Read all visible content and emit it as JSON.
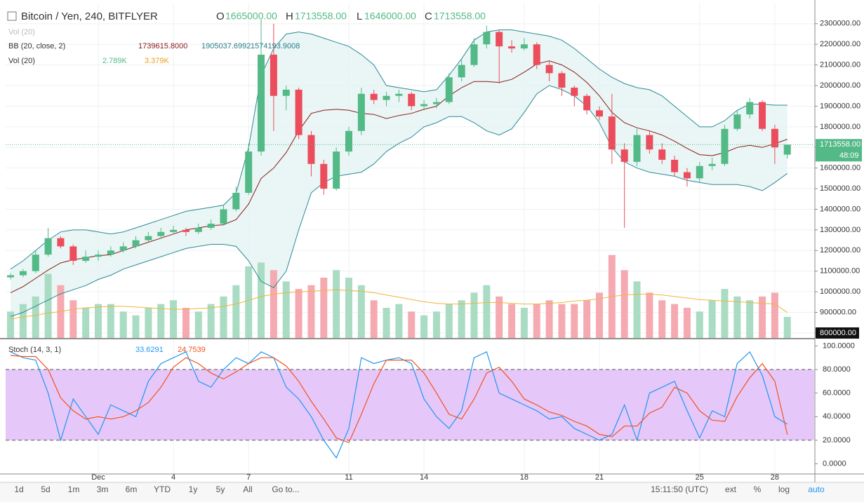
{
  "chart_data": [
    {
      "type": "candlestick",
      "title": "Bitcoin / Yen, 240, BITFLYER",
      "ohlc_legend": [
        {
          "label": "O",
          "value": "1665000.00"
        },
        {
          "label": "H",
          "value": "1713558.00"
        },
        {
          "label": "L",
          "value": "1646000.00"
        },
        {
          "label": "C",
          "value": "1713558.00"
        }
      ],
      "indicators": [
        {
          "name": "Vol (20)"
        },
        {
          "name": "BB (20, close, 2)",
          "readouts": [
            "1739615.8000",
            "1905037.6992",
            "1574193.9008"
          ]
        },
        {
          "name": "Vol (20)",
          "readouts": [
            "2.789K",
            "3.379K"
          ]
        }
      ],
      "categories": [
        null,
        null,
        null,
        null,
        null,
        null,
        null,
        "Dec",
        null,
        null,
        null,
        null,
        null,
        "4",
        null,
        null,
        null,
        null,
        null,
        "7",
        null,
        null,
        null,
        null,
        null,
        null,
        null,
        "11",
        null,
        null,
        null,
        null,
        null,
        "14",
        null,
        null,
        null,
        null,
        null,
        null,
        null,
        "18",
        null,
        null,
        null,
        null,
        null,
        "21",
        null,
        null,
        null,
        null,
        null,
        null,
        null,
        "25",
        null,
        null,
        null,
        null,
        null,
        "28",
        null
      ],
      "open": [
        1070000,
        1080000,
        1100000,
        1180000,
        1260000,
        1220000,
        1150000,
        1170000,
        1180000,
        1200000,
        1220000,
        1250000,
        1270000,
        1290000,
        1300000,
        1290000,
        1310000,
        1330000,
        1400000,
        1480000,
        1680000,
        2150000,
        1950000,
        1980000,
        1760000,
        1620000,
        1500000,
        1680000,
        1780000,
        1960000,
        1930000,
        1950000,
        1960000,
        1900000,
        1910000,
        1920000,
        2040000,
        2100000,
        2200000,
        2260000,
        2190000,
        2180000,
        2200000,
        2100000,
        2060000,
        1990000,
        1950000,
        1880000,
        1850000,
        1690000,
        1630000,
        1760000,
        1690000,
        1640000,
        1580000,
        1550000,
        1610000,
        1620000,
        1790000,
        1860000,
        1920000,
        1790000,
        1665000
      ],
      "high": [
        1090000,
        1110000,
        1200000,
        1310000,
        1270000,
        1230000,
        1200000,
        1200000,
        1220000,
        1240000,
        1270000,
        1290000,
        1310000,
        1320000,
        1310000,
        1330000,
        1350000,
        1420000,
        1510000,
        1720000,
        2320000,
        2300000,
        2000000,
        1990000,
        1780000,
        1640000,
        1700000,
        1800000,
        1990000,
        1980000,
        1970000,
        1980000,
        1970000,
        1930000,
        1940000,
        2060000,
        2130000,
        2230000,
        2290000,
        2270000,
        2220000,
        2230000,
        2210000,
        2120000,
        2070000,
        2000000,
        1960000,
        1900000,
        1960000,
        1720000,
        1790000,
        1780000,
        1720000,
        1660000,
        1600000,
        1630000,
        1650000,
        1810000,
        1880000,
        1940000,
        1930000,
        1810000,
        1713558
      ],
      "low": [
        1060000,
        1070000,
        1090000,
        1170000,
        1210000,
        1130000,
        1140000,
        1150000,
        1170000,
        1190000,
        1210000,
        1240000,
        1260000,
        1280000,
        1270000,
        1280000,
        1300000,
        1320000,
        1390000,
        1470000,
        1660000,
        1780000,
        1880000,
        1740000,
        1560000,
        1470000,
        1490000,
        1660000,
        1760000,
        1910000,
        1900000,
        1920000,
        1880000,
        1880000,
        1890000,
        1910000,
        2020000,
        2090000,
        2180000,
        2010000,
        2160000,
        2170000,
        2080000,
        2020000,
        1950000,
        1900000,
        1860000,
        1830000,
        1620000,
        1310000,
        1610000,
        1670000,
        1620000,
        1560000,
        1510000,
        1530000,
        1590000,
        1610000,
        1780000,
        1840000,
        1780000,
        1620000,
        1646000
      ],
      "close": [
        1080000,
        1100000,
        1180000,
        1260000,
        1220000,
        1150000,
        1170000,
        1180000,
        1200000,
        1220000,
        1250000,
        1270000,
        1290000,
        1300000,
        1290000,
        1310000,
        1330000,
        1400000,
        1480000,
        1680000,
        2150000,
        1950000,
        1980000,
        1760000,
        1620000,
        1500000,
        1680000,
        1780000,
        1960000,
        1930000,
        1950000,
        1960000,
        1900000,
        1910000,
        1920000,
        2040000,
        2100000,
        2200000,
        2260000,
        2190000,
        2180000,
        2200000,
        2100000,
        2060000,
        1990000,
        1950000,
        1880000,
        1850000,
        1690000,
        1630000,
        1760000,
        1690000,
        1640000,
        1580000,
        1550000,
        1610000,
        1620000,
        1790000,
        1860000,
        1920000,
        1790000,
        1700000,
        1713558
      ],
      "up_color": "#53b987",
      "down_color": "#eb4d5c",
      "bb_upper": [
        1110000,
        1150000,
        1200000,
        1250000,
        1290000,
        1300000,
        1300000,
        1290000,
        1280000,
        1290000,
        1310000,
        1330000,
        1350000,
        1370000,
        1390000,
        1400000,
        1410000,
        1420000,
        1480000,
        1700000,
        2050000,
        2180000,
        2250000,
        2260000,
        2250000,
        2230000,
        2210000,
        2190000,
        2150000,
        2100000,
        2000000,
        1990000,
        1980000,
        1970000,
        1980000,
        2050000,
        2130000,
        2220000,
        2260000,
        2270000,
        2270000,
        2260000,
        2250000,
        2240000,
        2220000,
        2180000,
        2130000,
        2080000,
        2040000,
        2010000,
        1990000,
        1980000,
        1950000,
        1900000,
        1850000,
        1800000,
        1800000,
        1830000,
        1880000,
        1910000,
        1910000,
        1905000,
        1905037.6992
      ],
      "bb_middle": [
        995000,
        1025000,
        1065000,
        1105000,
        1140000,
        1155000,
        1165000,
        1175000,
        1180000,
        1200000,
        1220000,
        1240000,
        1260000,
        1280000,
        1300000,
        1310000,
        1320000,
        1325000,
        1350000,
        1425000,
        1550000,
        1600000,
        1675000,
        1780000,
        1865000,
        1880000,
        1885000,
        1880000,
        1865000,
        1860000,
        1840000,
        1855000,
        1865000,
        1885000,
        1900000,
        1950000,
        1990000,
        2020000,
        2020000,
        2015000,
        2030000,
        2065000,
        2105000,
        2120000,
        2100000,
        2065000,
        2015000,
        1950000,
        1870000,
        1820000,
        1795000,
        1780000,
        1760000,
        1730000,
        1695000,
        1665000,
        1660000,
        1675000,
        1700000,
        1710000,
        1700000,
        1718000,
        1739615.8
      ],
      "bb_lower": [
        880000,
        900000,
        930000,
        960000,
        990000,
        1010000,
        1030000,
        1060000,
        1080000,
        1110000,
        1130000,
        1150000,
        1170000,
        1190000,
        1210000,
        1220000,
        1230000,
        1230000,
        1220000,
        1150000,
        1050000,
        1020000,
        1100000,
        1300000,
        1480000,
        1530000,
        1560000,
        1570000,
        1580000,
        1620000,
        1680000,
        1720000,
        1750000,
        1800000,
        1820000,
        1850000,
        1850000,
        1820000,
        1780000,
        1760000,
        1790000,
        1870000,
        1960000,
        2000000,
        1980000,
        1950000,
        1900000,
        1820000,
        1700000,
        1630000,
        1600000,
        1580000,
        1570000,
        1560000,
        1540000,
        1530000,
        1520000,
        1520000,
        1520000,
        1510000,
        1490000,
        1530000,
        1574193.9008
      ],
      "bb_band_color": "#2a8a96",
      "bb_middle_color": "#8b1a1a",
      "bb_fill": "#e3f4f2",
      "volume": [
        3.5,
        4.5,
        5.5,
        8.5,
        7,
        5,
        4,
        4.5,
        4.5,
        3.5,
        3,
        4,
        4.5,
        5,
        4,
        3.5,
        4.5,
        5.5,
        7,
        9.5,
        10,
        9,
        7.5,
        6.5,
        7,
        8,
        9,
        8,
        7,
        5,
        4,
        4.5,
        3.5,
        3,
        3.5,
        4.5,
        5,
        6,
        7,
        5.5,
        4.5,
        4,
        4.5,
        5,
        4.5,
        4.5,
        5,
        6,
        11,
        9,
        7.5,
        6,
        5,
        4.5,
        4,
        3.5,
        5,
        6.5,
        5.5,
        5,
        5.5,
        6,
        2.789
      ],
      "volume_ma": [
        2.5,
        2.8,
        3,
        3.3,
        3.5,
        3.8,
        4,
        4.1,
        4.2,
        4.2,
        4.1,
        4,
        3.9,
        3.8,
        3.8,
        3.9,
        4,
        4.2,
        4.5,
        5,
        5.5,
        5.8,
        6,
        6.1,
        6.2,
        6.3,
        6.4,
        6.3,
        6.2,
        6,
        5.7,
        5.4,
        5.1,
        4.8,
        4.6,
        4.5,
        4.5,
        4.6,
        4.7,
        4.7,
        4.6,
        4.5,
        4.5,
        4.6,
        4.7,
        4.9,
        5,
        5.2,
        5.5,
        5.7,
        5.8,
        5.8,
        5.7,
        5.5,
        5.3,
        5.1,
        5,
        4.9,
        4.8,
        4.7,
        4.6,
        4.5,
        3.379
      ],
      "volume_ylim": [
        0,
        16
      ],
      "volume_up_color": "#a9dcc3",
      "volume_down_color": "#f5aab2",
      "volume_ma_color": "#f0b43c",
      "ylim": [
        776000,
        2398000
      ],
      "yticks": [
        {
          "value": 800000,
          "label": "800000.00"
        },
        {
          "value": 900000,
          "label": "900000.00"
        },
        {
          "value": 1000000,
          "label": "1000000.00"
        },
        {
          "value": 1100000,
          "label": "1100000.00"
        },
        {
          "value": 1200000,
          "label": "1200000.00"
        },
        {
          "value": 1300000,
          "label": "1300000.00"
        },
        {
          "value": 1400000,
          "label": "1400000.00"
        },
        {
          "value": 1500000,
          "label": "1500000.00"
        },
        {
          "value": 1600000,
          "label": "1600000.00"
        },
        {
          "value": 1700000,
          "label": "1700000.00"
        },
        {
          "value": 1800000,
          "label": "1800000.00"
        },
        {
          "value": 1900000,
          "label": "1900000.00"
        },
        {
          "value": 2000000,
          "label": "2000000.00"
        },
        {
          "value": 2100000,
          "label": "2100000.00"
        },
        {
          "value": 2200000,
          "label": "2200000.00"
        },
        {
          "value": 2300000,
          "label": "2300000.00"
        }
      ],
      "last_price_label": "1713558.00",
      "countdown": "48:09",
      "grid": true
    },
    {
      "type": "line",
      "title": "Stoch (14, 3, 1)",
      "series": [
        {
          "name": "33.6291",
          "color": "#2196f3",
          "values": [
            95,
            90,
            88,
            60,
            20,
            55,
            40,
            25,
            50,
            45,
            40,
            70,
            85,
            90,
            95,
            70,
            65,
            80,
            90,
            85,
            95,
            90,
            65,
            55,
            40,
            20,
            5,
            30,
            90,
            85,
            88,
            90,
            85,
            55,
            40,
            30,
            45,
            90,
            95,
            60,
            55,
            50,
            45,
            38,
            40,
            30,
            25,
            20,
            25,
            50,
            20,
            60,
            65,
            70,
            45,
            22,
            45,
            40,
            85,
            95,
            75,
            40,
            33.6291
          ]
        },
        {
          "name": "24.7539",
          "color": "#f4511e",
          "values": [
            92,
            91,
            91,
            80,
            56,
            45,
            38,
            40,
            38,
            40,
            45,
            52,
            65,
            82,
            90,
            85,
            77,
            72,
            78,
            85,
            90,
            90,
            83,
            70,
            53,
            38,
            22,
            18,
            42,
            68,
            88,
            88,
            88,
            77,
            60,
            42,
            38,
            55,
            77,
            82,
            70,
            55,
            50,
            44,
            41,
            36,
            32,
            25,
            23,
            32,
            32,
            43,
            48,
            65,
            60,
            45,
            37,
            36,
            57,
            73,
            85,
            70,
            24.7539
          ]
        }
      ],
      "bands": [
        20,
        80
      ],
      "band_fill": "#e5c8f9",
      "ylim": [
        -8,
        105
      ],
      "yticks": [
        {
          "value": 0,
          "label": "0.0000"
        },
        {
          "value": 20,
          "label": "20.0000"
        },
        {
          "value": 40,
          "label": "40.0000"
        },
        {
          "value": 60,
          "label": "60.0000"
        },
        {
          "value": 80,
          "label": "80.0000"
        },
        {
          "value": 100,
          "label": "100.0000"
        }
      ]
    }
  ],
  "toolbar": {
    "left": [
      "1d",
      "5d",
      "1m",
      "3m",
      "6m",
      "YTD",
      "1y",
      "5y",
      "All",
      "Go to..."
    ],
    "right": [
      "15:11:50 (UTC)",
      "ext",
      "%",
      "log",
      "auto"
    ]
  }
}
